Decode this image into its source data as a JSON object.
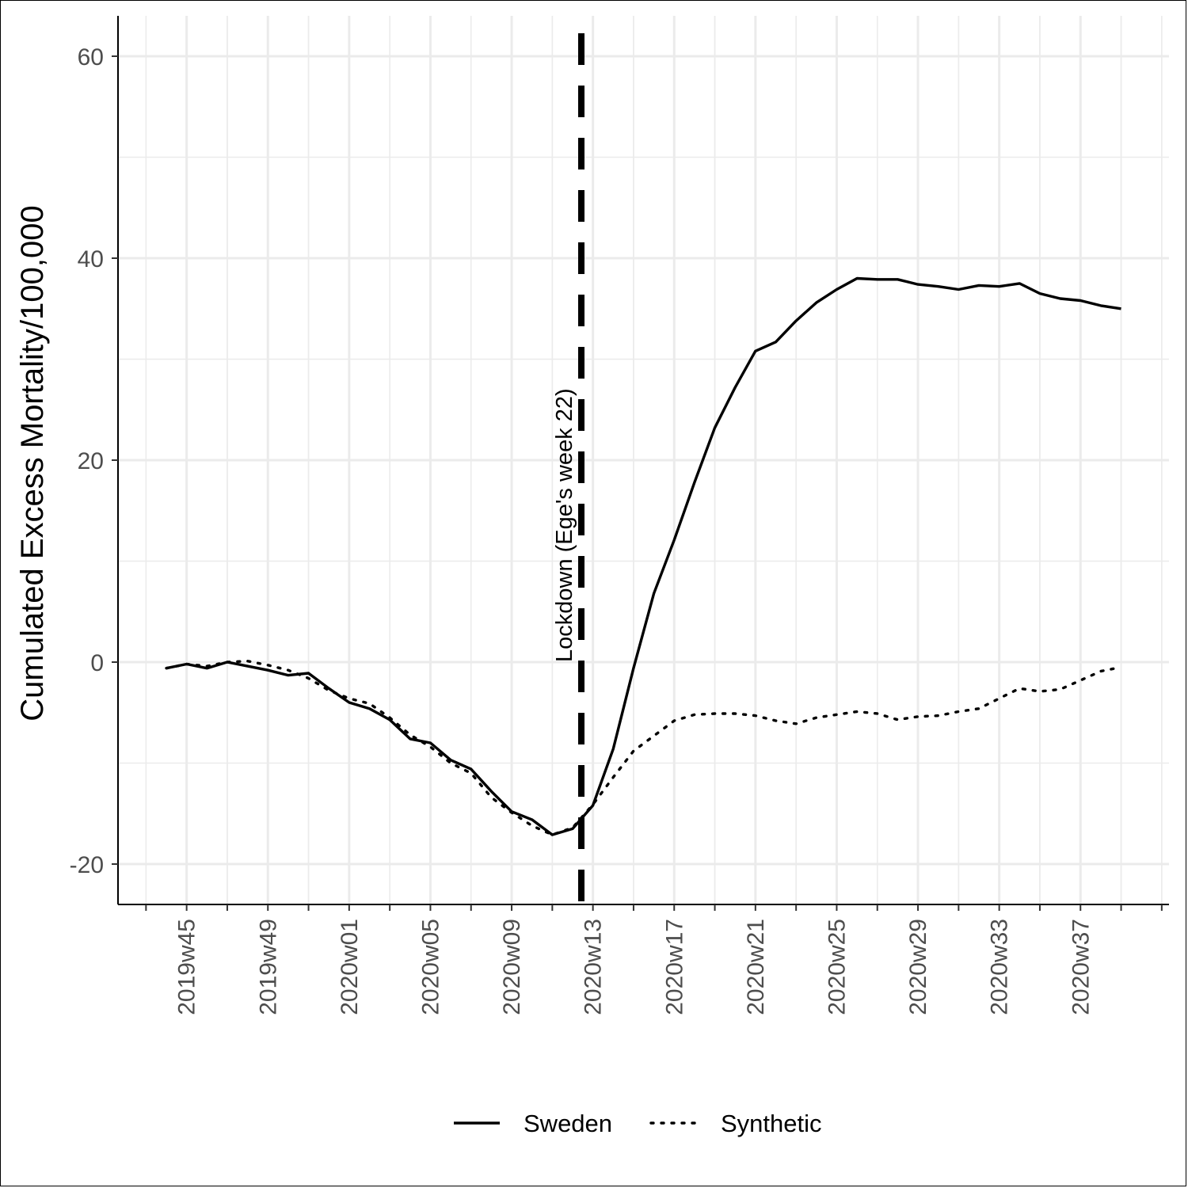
{
  "chart_data": {
    "type": "line",
    "ylabel": "Cumulated Excess Mortality/100,000",
    "xlabel": "",
    "ylim": [
      -24,
      64
    ],
    "y_ticks": [
      -20,
      0,
      20,
      40,
      60
    ],
    "x_tick_labels": [
      "2019w45",
      "2019w49",
      "2020w01",
      "2020w05",
      "2020w09",
      "2020w13",
      "2020w17",
      "2020w21",
      "2020w25",
      "2020w29",
      "2020w33",
      "2020w37"
    ],
    "x_categories": [
      "2019w44",
      "2019w45",
      "2019w46",
      "2019w47",
      "2019w48",
      "2019w49",
      "2019w50",
      "2019w51",
      "2019w52",
      "2020w01",
      "2020w02",
      "2020w03",
      "2020w04",
      "2020w05",
      "2020w06",
      "2020w07",
      "2020w08",
      "2020w09",
      "2020w10",
      "2020w11",
      "2020w12",
      "2020w13",
      "2020w14",
      "2020w15",
      "2020w16",
      "2020w17",
      "2020w18",
      "2020w19",
      "2020w20",
      "2020w21",
      "2020w22",
      "2020w23",
      "2020w24",
      "2020w25",
      "2020w26",
      "2020w27",
      "2020w28",
      "2020w29",
      "2020w30",
      "2020w31",
      "2020w32",
      "2020w33",
      "2020w34",
      "2020w35",
      "2020w36",
      "2020w37",
      "2020w38",
      "2020w39"
    ],
    "grid": true,
    "legend_position": "bottom",
    "series": [
      {
        "name": "Sweden",
        "style": "solid",
        "color": "#000000",
        "values": [
          -0.6,
          -0.2,
          -0.6,
          0.0,
          -0.4,
          -0.8,
          -1.3,
          -1.1,
          -2.6,
          -4.0,
          -4.6,
          -5.7,
          -7.6,
          -8.0,
          -9.7,
          -10.6,
          -12.8,
          -14.8,
          -15.6,
          -17.1,
          -16.5,
          -14.2,
          -8.6,
          -0.6,
          6.8,
          12.1,
          17.8,
          23.2,
          27.2,
          30.8,
          31.7,
          33.8,
          35.6,
          36.9,
          38.0,
          37.9,
          37.9,
          37.4,
          37.2,
          36.9,
          37.3,
          37.2,
          37.5,
          36.5,
          36.0,
          35.8,
          35.3,
          35.0
        ]
      },
      {
        "name": "Synthetic",
        "style": "dotted",
        "color": "#000000",
        "values": [
          -0.6,
          -0.2,
          -0.4,
          0.0,
          0.1,
          -0.3,
          -0.8,
          -1.6,
          -2.8,
          -3.6,
          -4.1,
          -5.5,
          -7.2,
          -8.4,
          -10.0,
          -11.0,
          -13.4,
          -14.9,
          -16.2,
          -17.1,
          -16.4,
          -14.1,
          -11.4,
          -8.8,
          -7.3,
          -5.8,
          -5.2,
          -5.1,
          -5.1,
          -5.3,
          -5.8,
          -6.1,
          -5.5,
          -5.2,
          -4.9,
          -5.1,
          -5.7,
          -5.4,
          -5.3,
          -4.9,
          -4.6,
          -3.6,
          -2.6,
          -2.9,
          -2.7,
          -1.8,
          -0.9,
          -0.5
        ]
      }
    ],
    "annotations": [
      {
        "text": "Lockdown (Ege's week 22)",
        "x": "2020w12",
        "line_style": "dashed",
        "orientation": "vertical"
      }
    ]
  }
}
